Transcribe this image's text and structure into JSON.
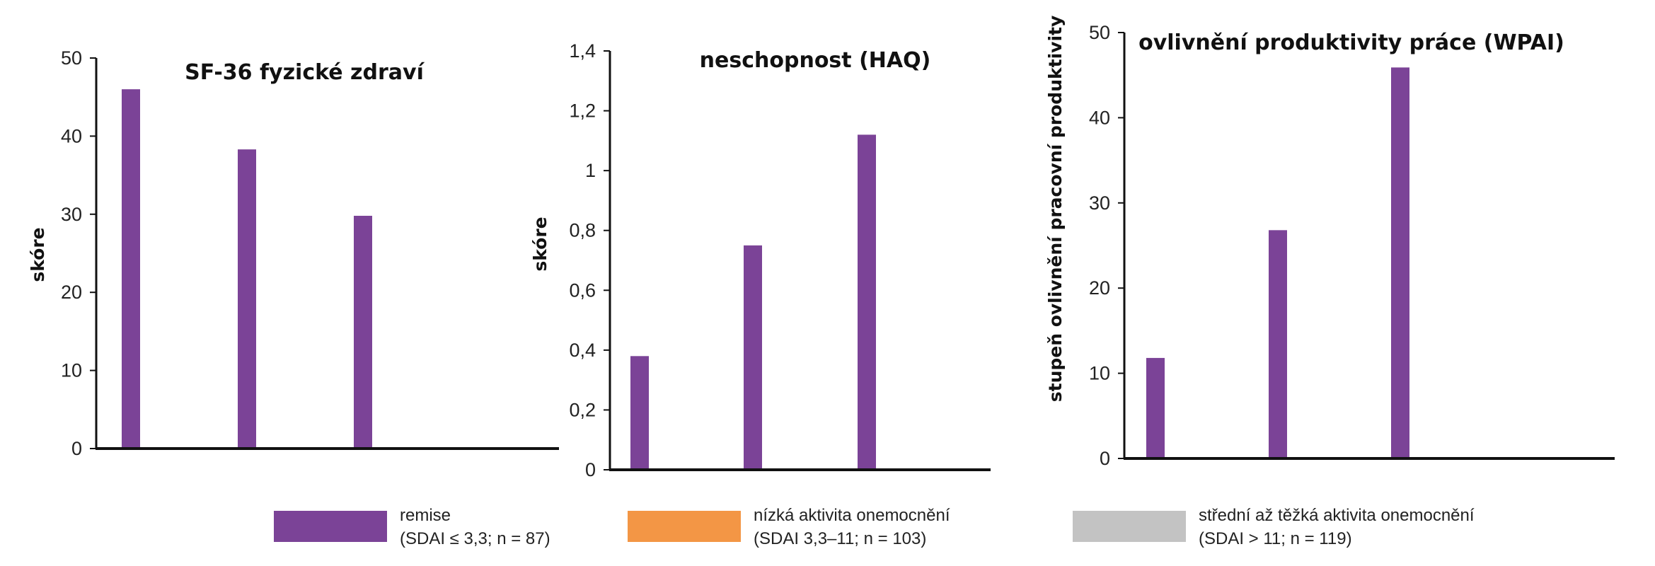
{
  "chart_data": [
    {
      "type": "bar",
      "title": "SF-36 fyzické zdraví",
      "ylabel": "skóre",
      "xlabel": "",
      "ylim": [
        0,
        50
      ],
      "yticks": [
        "0",
        "10",
        "20",
        "30",
        "40",
        "50"
      ],
      "categories": [
        "remise",
        "nízká aktivita onemocnění",
        "střední až těžká aktivita onemocnění"
      ],
      "values": [
        46,
        38.3,
        29.8
      ]
    },
    {
      "type": "bar",
      "title": "neschopnost (HAQ)",
      "ylabel": "skóre",
      "xlabel": "",
      "ylim": [
        0,
        1.4
      ],
      "yticks": [
        "0",
        "0,2",
        "0,4",
        "0,6",
        "0,8",
        "1",
        "1,2",
        "1,4"
      ],
      "categories": [
        "remise",
        "nízká aktivita onemocnění",
        "střední až těžká aktivita onemocnění"
      ],
      "values": [
        0.38,
        0.75,
        1.12
      ]
    },
    {
      "type": "bar",
      "title": "ovlivnění produktivity práce (WPAI)",
      "ylabel": "stupeň ovlivnění pracovní produktivity",
      "xlabel": "",
      "ylim": [
        0,
        50
      ],
      "yticks": [
        "0",
        "10",
        "20",
        "30",
        "40",
        "50"
      ],
      "categories": [
        "remise",
        "nízká aktivita onemocnění",
        "střední až těžká aktivita onemocnění"
      ],
      "values": [
        11.8,
        26.8,
        45.9
      ]
    }
  ],
  "legend": {
    "placement": "bottom",
    "items": [
      {
        "line1": "remise",
        "line2": "(SDAI ≤ 3,3; n = 87)",
        "color": "#7b4397"
      },
      {
        "line1": "nízká aktivita onemocnění",
        "line2": "(SDAI 3,3–11; n = 103)",
        "color": "#f39645"
      },
      {
        "line1": "střední až těžká aktivita onemocnění",
        "line2": "(SDAI > 11; n = 119)",
        "color": "#c3c3c3"
      }
    ]
  },
  "colors": {
    "bar": "#7b4397",
    "axis": "#111111"
  }
}
